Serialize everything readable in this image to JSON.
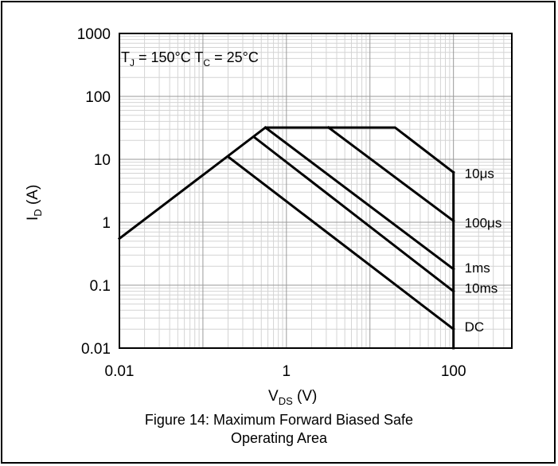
{
  "chart_data": {
    "type": "line",
    "x_scale": "log",
    "y_scale": "log",
    "xlim": [
      0.01,
      500
    ],
    "ylim": [
      0.01,
      1000
    ],
    "grid": "minor and major (log decades)",
    "x_ticks": [
      {
        "value": 0.01,
        "label": "0.01"
      },
      {
        "value": 1,
        "label": "1"
      },
      {
        "value": 100,
        "label": "100"
      }
    ],
    "y_ticks": [
      {
        "value": 1000,
        "label": "1000"
      },
      {
        "value": 100,
        "label": "100"
      },
      {
        "value": 10,
        "label": "10"
      },
      {
        "value": 1,
        "label": "1"
      },
      {
        "value": 0.1,
        "label": "0.1"
      },
      {
        "value": 0.01,
        "label": "0.01"
      }
    ],
    "xlabel": {
      "main": "V",
      "sub": "DS",
      "rest": " (V)"
    },
    "ylabel": {
      "main": "I",
      "sub": "D",
      "rest": " (A)"
    },
    "annotation": {
      "t1": "T",
      "t1_sub": "J",
      "t1_rest": " = 150°C T",
      "t2_sub": "C",
      "t2_rest": " = 25°C"
    },
    "series": [
      {
        "name": "10μs",
        "color": "#000000",
        "x": [
          0.01,
          0.56,
          20,
          100
        ],
        "y": [
          0.55,
          32,
          32,
          6.2
        ]
      },
      {
        "name": "100μs",
        "x": [
          3.2,
          100
        ],
        "y": [
          32,
          1.05
        ]
      },
      {
        "name": "1ms",
        "x": [
          0.56,
          100
        ],
        "y": [
          32,
          0.18
        ]
      },
      {
        "name": "10ms",
        "x": [
          0.42,
          100
        ],
        "y": [
          22,
          0.08
        ]
      },
      {
        "name": "DC",
        "x": [
          0.2,
          100
        ],
        "y": [
          11,
          0.02
        ]
      },
      {
        "name": "",
        "x": [
          100,
          100
        ],
        "y": [
          6.2,
          0.01
        ]
      }
    ],
    "curve_labels": [
      {
        "text": "10μs",
        "x": 100,
        "y": 6.2
      },
      {
        "text": "100μs",
        "x": 100,
        "y": 1.05
      },
      {
        "text": "1ms",
        "x": 100,
        "y": 0.18
      },
      {
        "text": "10ms",
        "x": 100,
        "y": 0.08
      },
      {
        "text": "DC",
        "x": 100,
        "y": 0.02
      }
    ]
  },
  "caption": {
    "line1": "Figure 14: Maximum Forward Biased Safe",
    "line2": "Operating Area"
  }
}
